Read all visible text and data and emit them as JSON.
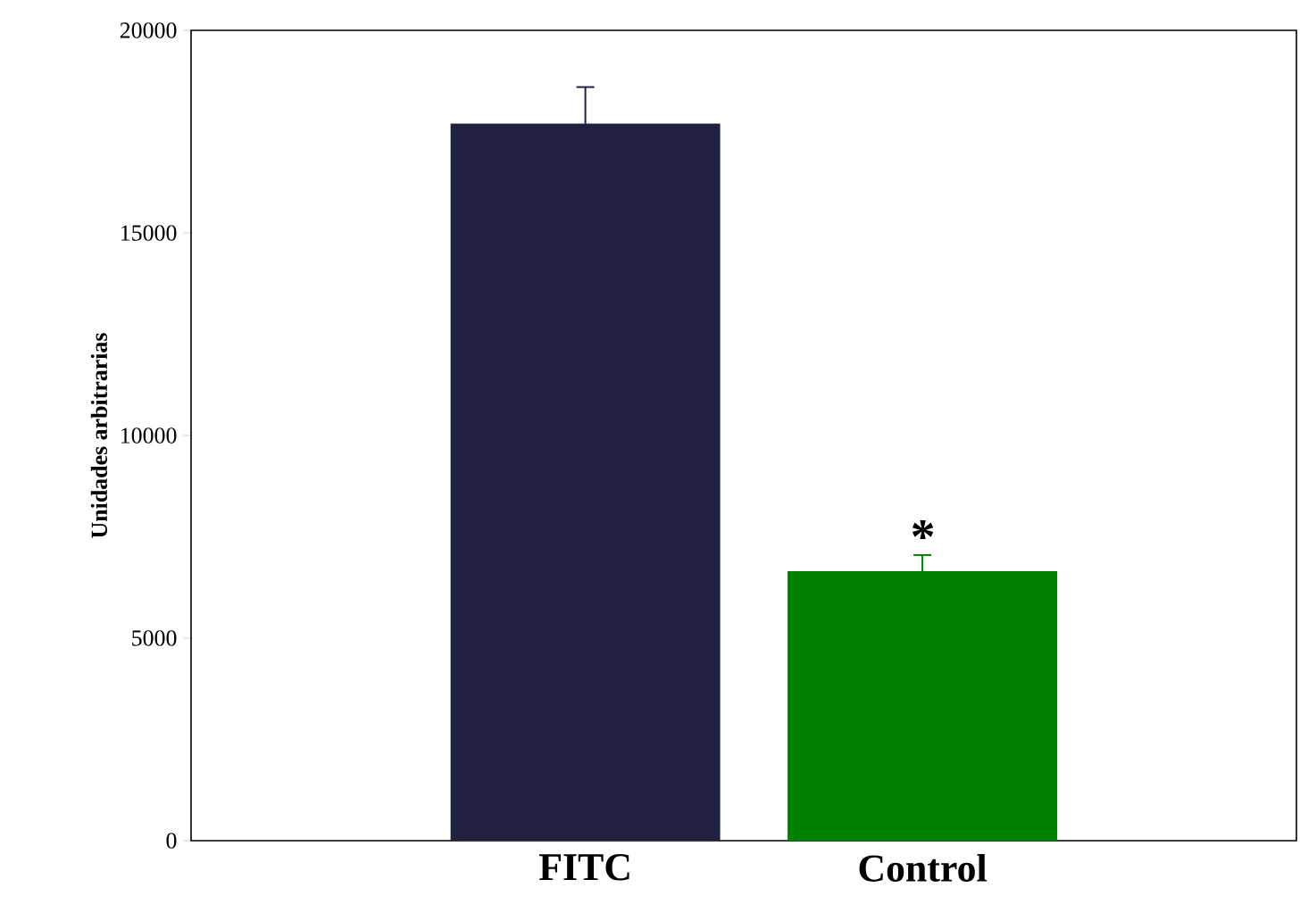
{
  "chart_data": {
    "type": "bar",
    "ylabel": "Unidades arbitrarias",
    "categories": [
      "FITC",
      "Control"
    ],
    "values": [
      17700,
      6650
    ],
    "colors": [
      "#20213f",
      "#008000"
    ],
    "errors": [
      900,
      400
    ],
    "ylim": [
      0,
      20000
    ],
    "yticks": [
      0,
      5000,
      10000,
      15000,
      20000
    ],
    "annotations": [
      "*"
    ]
  }
}
